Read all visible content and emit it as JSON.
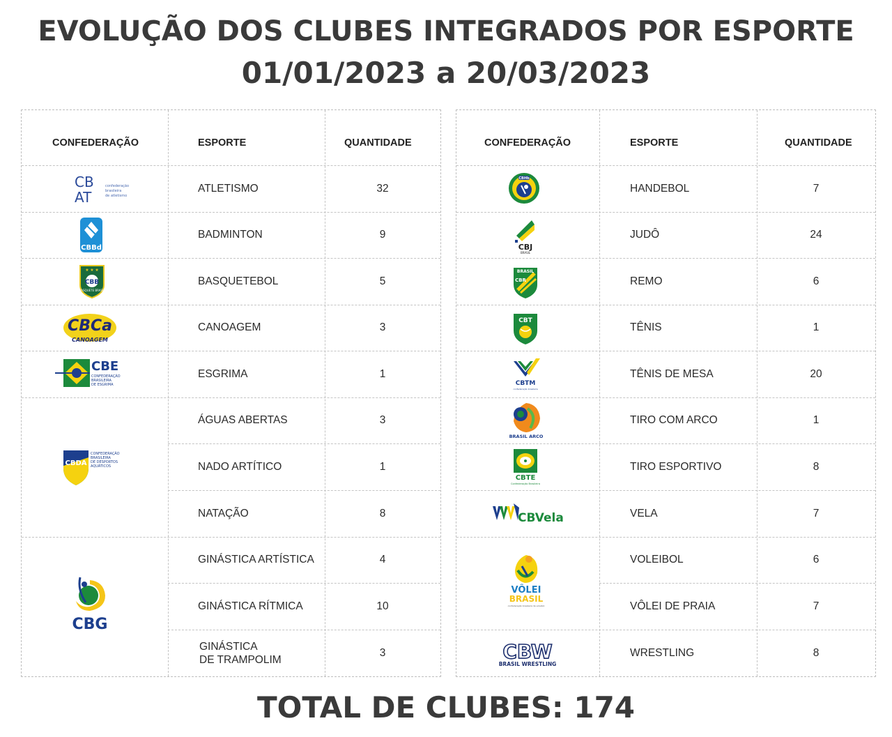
{
  "title_line1": "EVOLUÇÃO DOS CLUBES INTEGRADOS POR ESPORTE",
  "title_line2": "01/01/2023 a 20/03/2023",
  "total": "TOTAL DE CLUBES: 174",
  "headers": {
    "confederation": "CONFEDERAÇÃO",
    "sport": "ESPORTE",
    "quantity": "QUANTIDADE"
  },
  "left_rows": [
    {
      "sport": "ATLETISMO",
      "qty": "32"
    },
    {
      "sport": "BADMINTON",
      "qty": "9"
    },
    {
      "sport": "BASQUETEBOL",
      "qty": "5"
    },
    {
      "sport": "CANOAGEM",
      "qty": "3"
    },
    {
      "sport": "ESGRIMA",
      "qty": "1"
    },
    {
      "sport": "ÁGUAS ABERTAS",
      "qty": "3"
    },
    {
      "sport": "NADO ARTÍTICO",
      "qty": "1"
    },
    {
      "sport": "NATAÇÃO",
      "qty": "8"
    },
    {
      "sport": "GINÁSTICA ARTÍSTICA",
      "qty": "4"
    },
    {
      "sport": "GINÁSTICA RÍTMICA",
      "qty": "10"
    },
    {
      "sport": "GINÁSTICA\nDE TRAMPOLIM",
      "qty": "3"
    }
  ],
  "right_rows": [
    {
      "sport": "HANDEBOL",
      "qty": "7"
    },
    {
      "sport": "JUDÔ",
      "qty": "24"
    },
    {
      "sport": "REMO",
      "qty": "6"
    },
    {
      "sport": "TÊNIS",
      "qty": "1"
    },
    {
      "sport": "TÊNIS DE MESA",
      "qty": "20"
    },
    {
      "sport": "TIRO COM ARCO",
      "qty": "1"
    },
    {
      "sport": "TIRO ESPORTIVO",
      "qty": "8"
    },
    {
      "sport": "VELA",
      "qty": "7"
    },
    {
      "sport": "VOLEIBOL",
      "qty": "6"
    },
    {
      "sport": "VÔLEI DE PRAIA",
      "qty": "7"
    },
    {
      "sport": "WRESTLING",
      "qty": "8"
    }
  ],
  "logos": {
    "cbat": {
      "mark1": "CB",
      "mark2": "AT",
      "text": "confederação brasileira de atletismo"
    },
    "cbbd": {
      "text": "CBBd"
    },
    "cbb": {
      "text": "CBB",
      "sub": "BASQUETE BRASIL"
    },
    "cbca": {
      "text": "CBCa",
      "sub": "CANOAGEM"
    },
    "cbe": {
      "text": "CBE",
      "sub1": "CONFEDERAÇÃO",
      "sub2": "BRASILEIRA",
      "sub3": "DE ESGRIMA"
    },
    "cbda": {
      "text": "CBDA",
      "sub1": "CONFEDERAÇÃO",
      "sub2": "BRASILEIRA",
      "sub3": "DE DESPORTOS",
      "sub4": "AQUÁTICOS"
    },
    "cbg": {
      "text": "CBG"
    },
    "cbhb": {
      "text": "CBHb"
    },
    "cbj": {
      "text": "CBJ",
      "sub": "BRASIL"
    },
    "cbr": {
      "text": "CBR",
      "sub": "BRASIL"
    },
    "cbt": {
      "text": "CBT"
    },
    "cbtm": {
      "text": "CBTM"
    },
    "cbtarco": {
      "text": "BRASIL ARCO"
    },
    "cbte": {
      "text": "CBTE"
    },
    "cbvela": {
      "text": "CBVela"
    },
    "cbv": {
      "text1": "VÔLEI",
      "text2": "BRASIL"
    },
    "cbw": {
      "text": "CBW",
      "sub": "BRASIL WRESTLING"
    }
  }
}
